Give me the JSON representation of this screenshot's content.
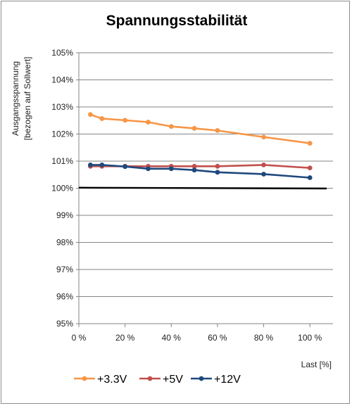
{
  "chart_data": {
    "type": "line",
    "title": "Spannungsstabilität",
    "ylabel_line1": "Ausgangsspannung",
    "ylabel_line2": "[bezogen auf Sollwert]",
    "xlabel": "Last [%]",
    "xlim": [
      0,
      110
    ],
    "ylim": [
      95,
      105
    ],
    "x_ticks": [
      0,
      20,
      40,
      60,
      80,
      100
    ],
    "x_tick_labels": [
      "0 %",
      "20 %",
      "40 %",
      "60 %",
      "80 %",
      "100 %"
    ],
    "y_ticks": [
      95,
      96,
      97,
      98,
      99,
      100,
      101,
      102,
      103,
      104,
      105
    ],
    "y_tick_labels": [
      "95%",
      "96%",
      "97%",
      "98%",
      "99%",
      "100%",
      "101%",
      "102%",
      "103%",
      "104%",
      "105%"
    ],
    "grid": "horizontal",
    "legend_position": "bottom",
    "reference_line": {
      "y": [
        100.02,
        99.99
      ],
      "color": "#000000"
    },
    "x": [
      5,
      10,
      20,
      30,
      40,
      50,
      60,
      80,
      100
    ],
    "series": [
      {
        "name": "+3.3V",
        "color": "#f79646",
        "values": [
          102.72,
          102.57,
          102.51,
          102.44,
          102.28,
          102.21,
          102.13,
          101.89,
          101.66
        ]
      },
      {
        "name": "+5V",
        "color": "#c0504d",
        "values": [
          100.81,
          100.81,
          100.81,
          100.81,
          100.81,
          100.81,
          100.81,
          100.86,
          100.75
        ]
      },
      {
        "name": "+12V",
        "color": "#1f497d",
        "values": [
          100.86,
          100.86,
          100.8,
          100.72,
          100.72,
          100.67,
          100.59,
          100.52,
          100.39
        ]
      }
    ]
  }
}
